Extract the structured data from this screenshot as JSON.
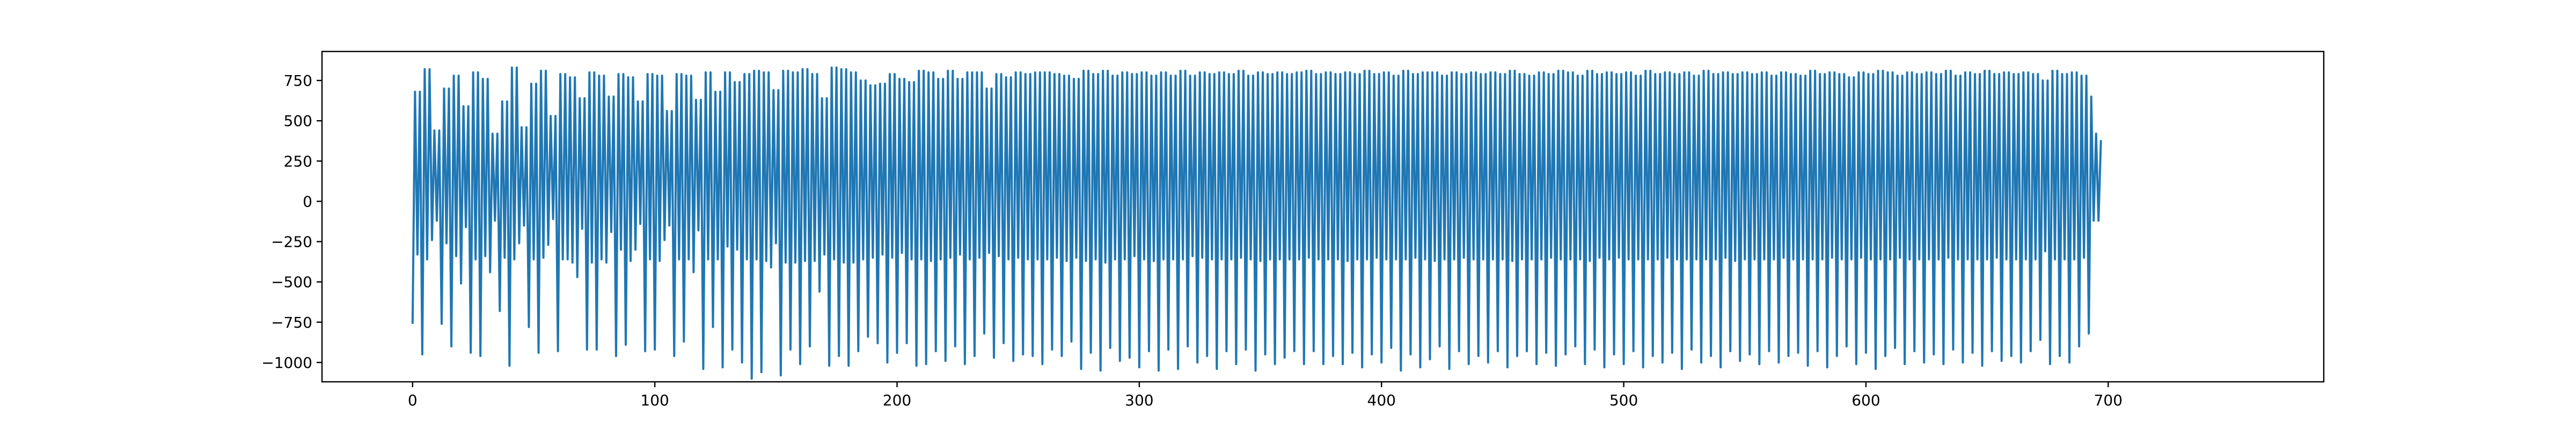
{
  "chart_data": {
    "type": "line",
    "title": "",
    "xlabel": "",
    "ylabel": "",
    "xlim": [
      -37.4,
      789
    ],
    "ylim": [
      -1120,
      930
    ],
    "grid": false,
    "x_ticks": [
      0,
      100,
      200,
      300,
      400,
      500,
      600,
      700
    ],
    "y_ticks": [
      -1000,
      -750,
      -500,
      -250,
      0,
      250,
      500,
      750
    ],
    "series": [
      {
        "color": "#1f77b4",
        "x_start": 0,
        "x_step": 1,
        "values": [
          -760,
          680,
          -330,
          680,
          -950,
          820,
          -360,
          820,
          -240,
          440,
          -120,
          440,
          -760,
          700,
          -260,
          700,
          -900,
          780,
          -340,
          780,
          -510,
          590,
          -160,
          590,
          -940,
          800,
          -360,
          800,
          -960,
          760,
          -340,
          760,
          -440,
          420,
          -120,
          420,
          -680,
          620,
          -350,
          620,
          -1020,
          830,
          -360,
          830,
          -260,
          460,
          -150,
          460,
          -780,
          730,
          -360,
          730,
          -940,
          810,
          -350,
          810,
          -270,
          530,
          -110,
          530,
          -930,
          790,
          -360,
          790,
          -360,
          770,
          -380,
          770,
          -470,
          640,
          -170,
          640,
          -920,
          800,
          -380,
          800,
          -920,
          780,
          -360,
          780,
          -380,
          650,
          -190,
          650,
          -960,
          790,
          -300,
          790,
          -890,
          770,
          -370,
          770,
          -300,
          620,
          -140,
          620,
          -930,
          790,
          -360,
          790,
          -920,
          780,
          -370,
          780,
          -240,
          560,
          -150,
          560,
          -960,
          790,
          -360,
          790,
          -870,
          780,
          -360,
          780,
          -440,
          630,
          -180,
          630,
          -1040,
          800,
          -360,
          800,
          -780,
          680,
          -360,
          680,
          -1030,
          800,
          -280,
          800,
          -920,
          740,
          -300,
          740,
          -1000,
          790,
          -360,
          790,
          -1100,
          810,
          -360,
          810,
          -1060,
          800,
          -370,
          800,
          -410,
          690,
          -260,
          690,
          -1080,
          810,
          -380,
          810,
          -920,
          800,
          -380,
          800,
          -1010,
          820,
          -370,
          820,
          -900,
          790,
          -370,
          790,
          -560,
          640,
          -330,
          640,
          -1020,
          830,
          -360,
          830,
          -960,
          820,
          -380,
          820,
          -1020,
          800,
          -380,
          800,
          -930,
          750,
          -360,
          750,
          -840,
          720,
          -350,
          720,
          -880,
          730,
          -330,
          730,
          -1000,
          790,
          -350,
          790,
          -940,
          760,
          -320,
          760,
          -880,
          740,
          -360,
          740,
          -1020,
          810,
          -360,
          810,
          -1010,
          800,
          -370,
          800,
          -930,
          760,
          -360,
          760,
          -990,
          810,
          -350,
          810,
          -900,
          760,
          -330,
          760,
          -1010,
          800,
          -360,
          800,
          -960,
          800,
          -350,
          800,
          -820,
          700,
          -320,
          700,
          -970,
          790,
          -340,
          790,
          -880,
          770,
          -360,
          770,
          -990,
          800,
          -350,
          800,
          -950,
          790,
          -360,
          790,
          -960,
          800,
          -360,
          800,
          -1010,
          800,
          -360,
          800,
          -920,
          790,
          -350,
          790,
          -960,
          780,
          -370,
          780,
          -870,
          760,
          -350,
          760,
          -1040,
          810,
          -370,
          810,
          -940,
          790,
          -360,
          790,
          -1050,
          810,
          -380,
          810,
          -910,
          780,
          -360,
          780,
          -990,
          800,
          -360,
          800,
          -970,
          790,
          -340,
          790,
          -1030,
          800,
          -360,
          800,
          -930,
          780,
          -370,
          780,
          -1050,
          800,
          -360,
          800,
          -920,
          780,
          -360,
          780,
          -1040,
          810,
          -360,
          810,
          -900,
          780,
          -340,
          780,
          -1000,
          800,
          -350,
          800,
          -960,
          790,
          -360,
          790,
          -1040,
          800,
          -360,
          800,
          -930,
          790,
          -360,
          790,
          -1010,
          810,
          -350,
          810,
          -920,
          780,
          -360,
          780,
          -1050,
          800,
          -370,
          800,
          -950,
          790,
          -360,
          790,
          -1010,
          800,
          -360,
          800,
          -970,
          790,
          -360,
          790,
          -930,
          800,
          -360,
          800,
          -1010,
          810,
          -350,
          810,
          -930,
          790,
          -360,
          790,
          -1010,
          800,
          -360,
          800,
          -960,
          790,
          -360,
          790,
          -1010,
          800,
          -370,
          800,
          -940,
          790,
          -360,
          790,
          -1030,
          810,
          -360,
          810,
          -950,
          790,
          -350,
          790,
          -1000,
          800,
          -360,
          800,
          -910,
          780,
          -360,
          780,
          -1050,
          810,
          -360,
          810,
          -950,
          790,
          -350,
          790,
          -1030,
          800,
          -360,
          800,
          -980,
          800,
          -370,
          800,
          -900,
          780,
          -360,
          780,
          -1040,
          800,
          -360,
          800,
          -930,
          790,
          -350,
          790,
          -1010,
          800,
          -360,
          800,
          -960,
          790,
          -360,
          790,
          -1000,
          800,
          -360,
          800,
          -930,
          790,
          -360,
          790,
          -1030,
          810,
          -370,
          810,
          -960,
          790,
          -360,
          790,
          -930,
          780,
          -360,
          780,
          -1010,
          800,
          -360,
          800,
          -940,
          790,
          -350,
          790,
          -1020,
          810,
          -360,
          810,
          -950,
          800,
          -360,
          800,
          -900,
          780,
          -360,
          780,
          -1010,
          810,
          -370,
          810,
          -920,
          790,
          -350,
          790,
          -1030,
          800,
          -360,
          800,
          -950,
          790,
          -350,
          790,
          -1010,
          800,
          -360,
          800,
          -930,
          780,
          -360,
          780,
          -1030,
          810,
          -360,
          810,
          -960,
          790,
          -360,
          790,
          -1000,
          800,
          -350,
          800,
          -940,
          790,
          -360,
          790,
          -1040,
          800,
          -360,
          800,
          -920,
          780,
          -360,
          780,
          -1000,
          810,
          -360,
          810,
          -960,
          790,
          -360,
          790,
          -1030,
          800,
          -350,
          800,
          -930,
          790,
          -370,
          790,
          -990,
          800,
          -360,
          800,
          -950,
          790,
          -360,
          790,
          -1010,
          800,
          -360,
          800,
          -930,
          780,
          -360,
          780,
          -1000,
          800,
          -350,
          800,
          -960,
          790,
          -360,
          790,
          -940,
          780,
          -360,
          780,
          -1020,
          810,
          -360,
          810,
          -930,
          790,
          -360,
          790,
          -1030,
          800,
          -350,
          800,
          -960,
          790,
          -360,
          790,
          -900,
          770,
          -360,
          770,
          -1010,
          800,
          -350,
          800,
          -940,
          790,
          -360,
          790,
          -1040,
          810,
          -360,
          810,
          -960,
          800,
          -360,
          800,
          -910,
          780,
          -350,
          780,
          -1010,
          800,
          -360,
          800,
          -930,
          790,
          -360,
          790,
          -1000,
          800,
          -360,
          800,
          -950,
          790,
          -360,
          790,
          -1010,
          810,
          -350,
          810,
          -920,
          780,
          -360,
          780,
          -1000,
          800,
          -360,
          800,
          -940,
          790,
          -360,
          790,
          -1020,
          810,
          -360,
          810,
          -930,
          790,
          -350,
          790,
          -990,
          800,
          -360,
          800,
          -960,
          790,
          -360,
          790,
          -1000,
          800,
          -360,
          800,
          -930,
          790,
          -360,
          790,
          -860,
          750,
          -310,
          750,
          -1010,
          810,
          -360,
          810,
          -960,
          790,
          -360,
          790,
          -1000,
          800,
          -360,
          800,
          -900,
          780,
          -350,
          780,
          -820,
          650,
          -120,
          420,
          -120,
          380
        ]
      }
    ]
  }
}
